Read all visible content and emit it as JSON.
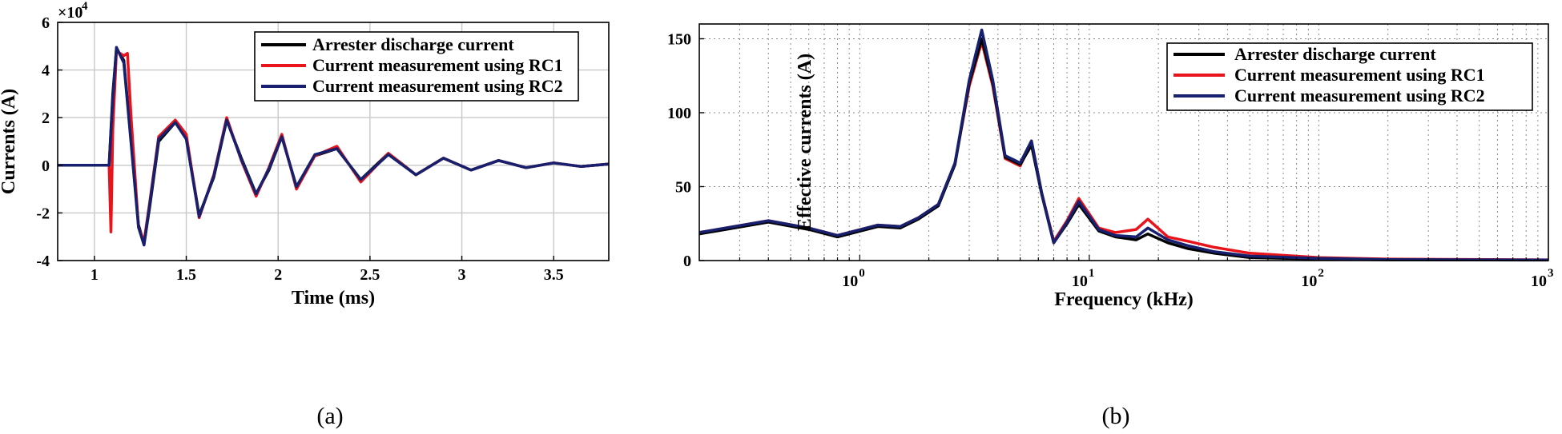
{
  "colors": {
    "black": "#000000",
    "red": "#e8131b",
    "blue": "#16206e"
  },
  "chart_data": [
    {
      "type": "line",
      "panel_label": "(a)",
      "xlabel": "Time (ms)",
      "ylabel": "Currents (A)",
      "xlim": [
        0.8,
        3.8
      ],
      "ylim": [
        -4,
        6
      ],
      "x_ticks": [
        "1",
        "1.5",
        "2",
        "2.5",
        "3",
        "3.5"
      ],
      "y_ticks": [
        "-4",
        "-2",
        "0",
        "2",
        "4",
        "6"
      ],
      "y_multiplier": {
        "base": "×10",
        "exp": "4"
      },
      "grid": true,
      "legend_position": "top-right",
      "series": [
        {
          "name": "Arrester discharge current",
          "color": "#000000",
          "x": [
            0.8,
            1.08,
            1.1,
            1.12,
            1.16,
            1.2,
            1.24,
            1.27,
            1.3,
            1.35,
            1.44,
            1.5,
            1.57,
            1.65,
            1.72,
            1.8,
            1.88,
            1.95,
            2.02,
            2.1,
            2.2,
            2.32,
            2.45,
            2.6,
            2.75,
            2.9,
            3.05,
            3.2,
            3.35,
            3.5,
            3.65,
            3.8
          ],
          "y": [
            0,
            0,
            3.0,
            4.9,
            4.4,
            1.0,
            -2.5,
            -3.3,
            -1.8,
            1.0,
            1.8,
            1.2,
            -2.1,
            -0.5,
            1.9,
            0.3,
            -1.2,
            -0.2,
            1.2,
            -0.9,
            0.4,
            0.7,
            -0.6,
            0.5,
            -0.4,
            0.3,
            -0.2,
            0.2,
            -0.1,
            0.1,
            -0.05,
            0.05
          ]
        },
        {
          "name": "Current measurement using RC1",
          "color": "#e8131b",
          "x": [
            0.8,
            1.08,
            1.09,
            1.1,
            1.12,
            1.16,
            1.18,
            1.2,
            1.24,
            1.27,
            1.3,
            1.35,
            1.44,
            1.5,
            1.57,
            1.65,
            1.72,
            1.8,
            1.88,
            1.95,
            2.02,
            2.1,
            2.2,
            2.32,
            2.45,
            2.6,
            2.75,
            2.9,
            3.05,
            3.2,
            3.35,
            3.5,
            3.65,
            3.8
          ],
          "y": [
            0,
            0,
            -2.8,
            1.5,
            4.8,
            4.6,
            4.7,
            2.0,
            -2.6,
            -3.2,
            -1.6,
            1.2,
            1.9,
            1.3,
            -2.2,
            -0.4,
            2.0,
            0.2,
            -1.3,
            -0.1,
            1.3,
            -1.0,
            0.4,
            0.8,
            -0.7,
            0.5,
            -0.4,
            0.3,
            -0.2,
            0.2,
            -0.1,
            0.1,
            -0.05,
            0.05
          ]
        },
        {
          "name": "Current measurement using RC2",
          "color": "#16206e",
          "x": [
            0.8,
            1.08,
            1.1,
            1.12,
            1.16,
            1.2,
            1.24,
            1.27,
            1.3,
            1.35,
            1.44,
            1.5,
            1.57,
            1.65,
            1.72,
            1.8,
            1.88,
            1.95,
            2.02,
            2.1,
            2.2,
            2.32,
            2.45,
            2.6,
            2.75,
            2.9,
            3.05,
            3.2,
            3.35,
            3.5,
            3.65,
            3.8
          ],
          "y": [
            0,
            0,
            2.8,
            4.95,
            4.3,
            0.9,
            -2.6,
            -3.35,
            -1.7,
            1.1,
            1.8,
            1.1,
            -2.15,
            -0.45,
            1.9,
            0.25,
            -1.2,
            -0.15,
            1.2,
            -0.9,
            0.45,
            0.7,
            -0.6,
            0.45,
            -0.4,
            0.3,
            -0.2,
            0.2,
            -0.1,
            0.1,
            -0.05,
            0.05
          ]
        }
      ]
    },
    {
      "type": "line",
      "panel_label": "(b)",
      "xlabel": "Frequency (kHz)",
      "ylabel": "Effective currents (A)",
      "xscale": "log",
      "xlim": [
        0.2,
        1000
      ],
      "ylim": [
        0,
        160
      ],
      "x_ticks": [
        {
          "base": "10",
          "exp": "0"
        },
        {
          "base": "10",
          "exp": "1"
        },
        {
          "base": "10",
          "exp": "2"
        },
        {
          "base": "10",
          "exp": "3"
        }
      ],
      "y_ticks": [
        "0",
        "50",
        "100",
        "150"
      ],
      "grid": true,
      "legend_position": "top-right",
      "series": [
        {
          "name": "Arrester discharge current",
          "color": "#000000",
          "x": [
            0.2,
            0.4,
            0.6,
            0.8,
            1.2,
            1.5,
            1.8,
            2.2,
            2.6,
            3.0,
            3.4,
            3.8,
            4.3,
            5.0,
            5.6,
            6.2,
            7.0,
            8.0,
            9.0,
            11,
            13,
            16,
            18,
            22,
            27,
            35,
            50,
            100,
            200,
            1000
          ],
          "y": [
            18,
            26,
            21,
            16,
            23,
            22,
            28,
            37,
            65,
            120,
            150,
            120,
            70,
            65,
            78,
            45,
            12,
            25,
            38,
            20,
            16,
            14,
            18,
            12,
            8,
            5,
            2,
            1,
            0.5,
            0.3
          ]
        },
        {
          "name": "Current measurement using RC1",
          "color": "#e8131b",
          "x": [
            0.2,
            0.4,
            0.6,
            0.8,
            1.2,
            1.5,
            1.8,
            2.2,
            2.6,
            3.0,
            3.4,
            3.8,
            4.3,
            5.0,
            5.6,
            6.2,
            7.0,
            8.0,
            9.0,
            11,
            13,
            16,
            18,
            22,
            27,
            35,
            50,
            100,
            200,
            1000
          ],
          "y": [
            19,
            27,
            22,
            17,
            24,
            23,
            29,
            38,
            66,
            118,
            148,
            118,
            69,
            64,
            80,
            46,
            13,
            27,
            42,
            22,
            19,
            21,
            28,
            16,
            13,
            9,
            5,
            2,
            1,
            0.5
          ]
        },
        {
          "name": "Current measurement using RC2",
          "color": "#16206e",
          "x": [
            0.2,
            0.4,
            0.6,
            0.8,
            1.2,
            1.5,
            1.8,
            2.2,
            2.6,
            3.0,
            3.4,
            3.8,
            4.3,
            5.0,
            5.6,
            6.2,
            7.0,
            8.0,
            9.0,
            11,
            13,
            16,
            18,
            22,
            27,
            35,
            50,
            100,
            200,
            1000
          ],
          "y": [
            19,
            27,
            22,
            17,
            24,
            23,
            29,
            38,
            66,
            122,
            156,
            122,
            71,
            66,
            81,
            46,
            12,
            26,
            40,
            21,
            17,
            16,
            22,
            14,
            10,
            6,
            3,
            1.5,
            0.7,
            0.4
          ]
        }
      ]
    }
  ]
}
